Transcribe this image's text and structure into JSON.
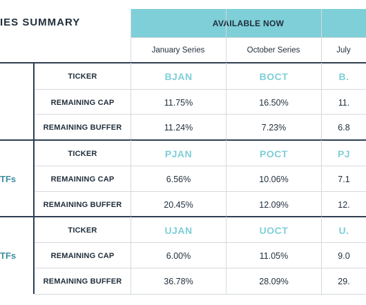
{
  "title": "IES SUMMARY",
  "banner": "AVAILABLE NOW",
  "columns": [
    "January Series",
    "October Series",
    "July"
  ],
  "groups": [
    {
      "label": "",
      "rows": [
        {
          "label": "TICKER",
          "values": [
            "BJAN",
            "BOCT",
            "B."
          ],
          "kind": "ticker"
        },
        {
          "label": "REMAINING CAP",
          "values": [
            "11.75%",
            "16.50%",
            "11."
          ],
          "kind": "val"
        },
        {
          "label": "REMAINING BUFFER",
          "values": [
            "11.24%",
            "7.23%",
            "6.8"
          ],
          "kind": "val"
        }
      ]
    },
    {
      "label": "TFs",
      "rows": [
        {
          "label": "TICKER",
          "values": [
            "PJAN",
            "POCT",
            "PJ"
          ],
          "kind": "ticker"
        },
        {
          "label": "REMAINING CAP",
          "values": [
            "6.56%",
            "10.06%",
            "7.1"
          ],
          "kind": "val"
        },
        {
          "label": "REMAINING BUFFER",
          "values": [
            "20.45%",
            "12.09%",
            "12."
          ],
          "kind": "val"
        }
      ]
    },
    {
      "label": "TFs",
      "rows": [
        {
          "label": "TICKER",
          "values": [
            "UJAN",
            "UOCT",
            "U."
          ],
          "kind": "ticker"
        },
        {
          "label": "REMAINING CAP",
          "values": [
            "6.00%",
            "11.05%",
            "9.0"
          ],
          "kind": "val"
        },
        {
          "label": "REMAINING BUFFER",
          "values": [
            "36.78%",
            "28.09%",
            "29."
          ],
          "kind": "val"
        }
      ]
    }
  ],
  "colors": {
    "accent": "#7fcfd8",
    "group_label": "#3f8ea3",
    "text": "#1f2d3a",
    "divider_dark": "#2c3e50",
    "divider_light": "#d5d9dd"
  }
}
